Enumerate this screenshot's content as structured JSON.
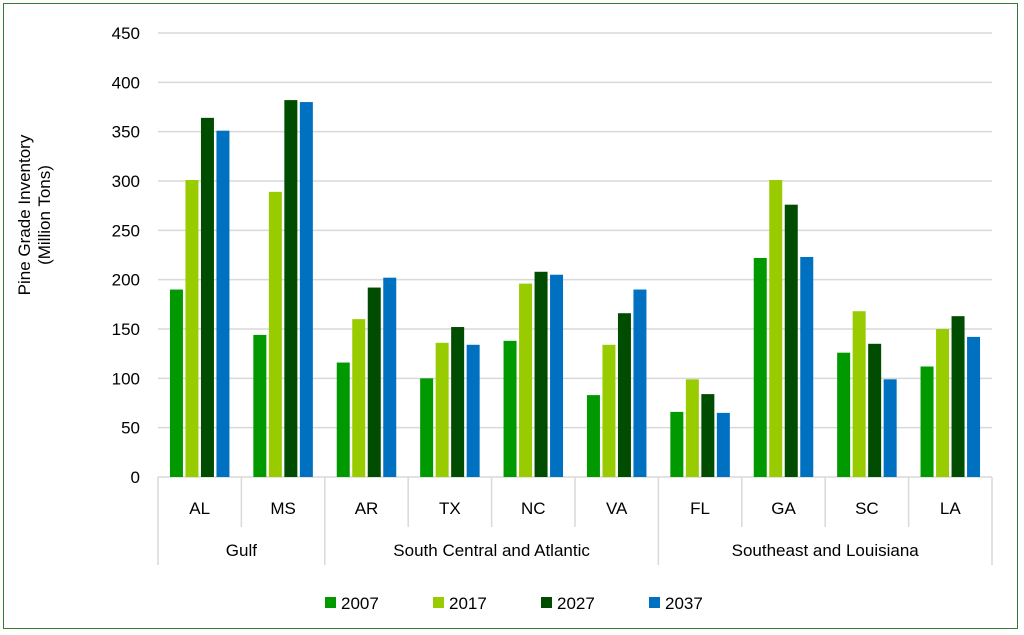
{
  "chart_data": {
    "type": "bar",
    "title": "",
    "xlabel": "",
    "ylabel": "Pine Grade Inventory (Million Tons)",
    "ylabel_lines": [
      "Pine Grade Inventory",
      "(Million Tons)"
    ],
    "ylim": [
      0,
      450
    ],
    "yticks": [
      0,
      50,
      100,
      150,
      200,
      250,
      300,
      350,
      400,
      450
    ],
    "grid": true,
    "legend_position": "bottom",
    "categories": [
      "AL",
      "MS",
      "AR",
      "TX",
      "NC",
      "VA",
      "FL",
      "GA",
      "SC",
      "LA"
    ],
    "groups": [
      {
        "label": "Gulf",
        "categories": [
          "AL",
          "MS"
        ]
      },
      {
        "label": "South Central and Atlantic",
        "categories": [
          "AR",
          "TX",
          "NC",
          "VA"
        ]
      },
      {
        "label": "Southeast and Louisiana",
        "categories": [
          "FL",
          "GA",
          "SC",
          "LA"
        ]
      }
    ],
    "series": [
      {
        "name": "2007",
        "color": "#009900",
        "values": [
          190,
          144,
          116,
          100,
          138,
          83,
          66,
          222,
          126,
          112
        ]
      },
      {
        "name": "2017",
        "color": "#99CC00",
        "values": [
          301,
          289,
          160,
          136,
          196,
          134,
          99,
          301,
          168,
          150
        ]
      },
      {
        "name": "2027",
        "color": "#004C00",
        "values": [
          364,
          382,
          192,
          152,
          208,
          166,
          84,
          276,
          135,
          163
        ]
      },
      {
        "name": "2037",
        "color": "#0070C0",
        "values": [
          351,
          380,
          202,
          134,
          205,
          190,
          65,
          223,
          99,
          142
        ]
      }
    ]
  }
}
